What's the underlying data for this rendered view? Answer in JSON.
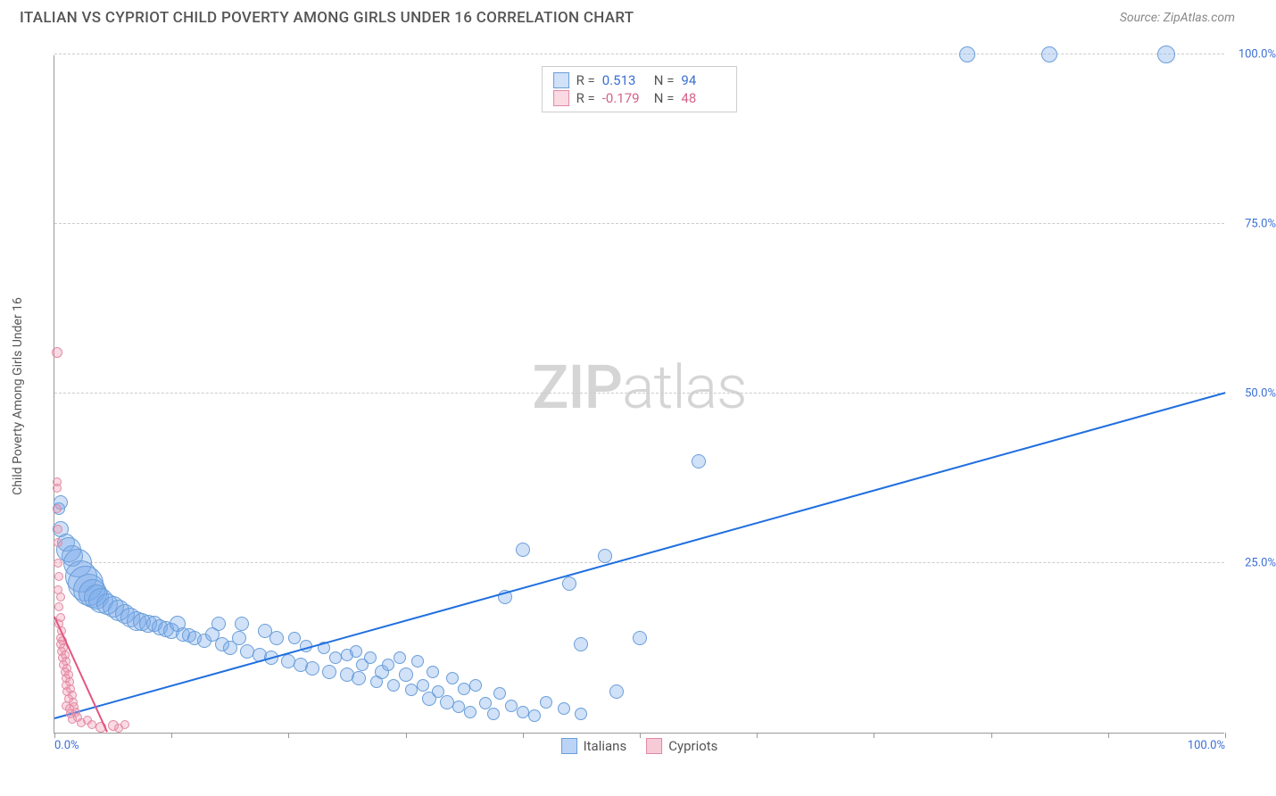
{
  "header": {
    "title": "ITALIAN VS CYPRIOT CHILD POVERTY AMONG GIRLS UNDER 16 CORRELATION CHART",
    "source": "Source: ZipAtlas.com"
  },
  "chart": {
    "type": "scatter",
    "y_axis_title": "Child Poverty Among Girls Under 16",
    "xlim": [
      0,
      100
    ],
    "ylim": [
      0,
      100
    ],
    "x_ticks": [
      0,
      10,
      20,
      30,
      40,
      50,
      60,
      70,
      80,
      90,
      100
    ],
    "y_gridlines": [
      0,
      25,
      50,
      75,
      100
    ],
    "x_labels": [
      {
        "v": 0,
        "t": "0.0%"
      },
      {
        "v": 100,
        "t": "100.0%"
      }
    ],
    "y_labels": [
      {
        "v": 25,
        "t": "25.0%"
      },
      {
        "v": 50,
        "t": "50.0%"
      },
      {
        "v": 75,
        "t": "75.0%"
      },
      {
        "v": 100,
        "t": "100.0%"
      }
    ],
    "watermark": {
      "bold": "ZIP",
      "light": "atlas"
    },
    "grid_color": "#cccccc",
    "axis_color": "#999999",
    "background_color": "#ffffff",
    "series": [
      {
        "name": "Italians",
        "fill": "rgba(120,170,235,0.35)",
        "stroke": "#6a9ed8",
        "trend_color": "#1f6fe0",
        "trend": {
          "x1": 0,
          "y1": 2,
          "x2": 100,
          "y2": 50
        },
        "R": "0.513",
        "N": "94",
        "stat_color": "#3b6fd4",
        "points": [
          {
            "x": 0.5,
            "y": 34,
            "r": 8
          },
          {
            "x": 0.4,
            "y": 33,
            "r": 7
          },
          {
            "x": 0.5,
            "y": 30,
            "r": 9
          },
          {
            "x": 1,
            "y": 28,
            "r": 10
          },
          {
            "x": 1.2,
            "y": 27,
            "r": 14
          },
          {
            "x": 1.5,
            "y": 26,
            "r": 12
          },
          {
            "x": 2,
            "y": 25,
            "r": 16
          },
          {
            "x": 2.3,
            "y": 23,
            "r": 18
          },
          {
            "x": 2.7,
            "y": 22,
            "r": 20
          },
          {
            "x": 3,
            "y": 21,
            "r": 18
          },
          {
            "x": 3.3,
            "y": 20.5,
            "r": 16
          },
          {
            "x": 3.6,
            "y": 20,
            "r": 14
          },
          {
            "x": 4,
            "y": 19.5,
            "r": 14
          },
          {
            "x": 4.5,
            "y": 19,
            "r": 12
          },
          {
            "x": 5,
            "y": 18.5,
            "r": 12
          },
          {
            "x": 5.5,
            "y": 18,
            "r": 12
          },
          {
            "x": 6,
            "y": 17.5,
            "r": 11
          },
          {
            "x": 6.5,
            "y": 17,
            "r": 11
          },
          {
            "x": 7,
            "y": 16.5,
            "r": 11
          },
          {
            "x": 7.5,
            "y": 16.3,
            "r": 10
          },
          {
            "x": 8,
            "y": 16,
            "r": 10
          },
          {
            "x": 8.5,
            "y": 16,
            "r": 9
          },
          {
            "x": 9,
            "y": 15.5,
            "r": 9
          },
          {
            "x": 9.5,
            "y": 15.3,
            "r": 9
          },
          {
            "x": 10,
            "y": 15,
            "r": 9
          },
          {
            "x": 10.5,
            "y": 16,
            "r": 9
          },
          {
            "x": 11,
            "y": 14.5,
            "r": 8
          },
          {
            "x": 11.5,
            "y": 14.3,
            "r": 8
          },
          {
            "x": 12,
            "y": 14,
            "r": 8
          },
          {
            "x": 12.8,
            "y": 13.5,
            "r": 8
          },
          {
            "x": 13.5,
            "y": 14.5,
            "r": 8
          },
          {
            "x": 14,
            "y": 16,
            "r": 8
          },
          {
            "x": 14.3,
            "y": 13,
            "r": 8
          },
          {
            "x": 15,
            "y": 12.5,
            "r": 8
          },
          {
            "x": 15.8,
            "y": 14,
            "r": 8
          },
          {
            "x": 16,
            "y": 16,
            "r": 8
          },
          {
            "x": 16.5,
            "y": 12,
            "r": 8
          },
          {
            "x": 17.5,
            "y": 11.5,
            "r": 8
          },
          {
            "x": 18,
            "y": 15,
            "r": 8
          },
          {
            "x": 18.5,
            "y": 11,
            "r": 8
          },
          {
            "x": 19,
            "y": 14,
            "r": 8
          },
          {
            "x": 20,
            "y": 10.5,
            "r": 8
          },
          {
            "x": 20.5,
            "y": 14,
            "r": 7
          },
          {
            "x": 21,
            "y": 10,
            "r": 8
          },
          {
            "x": 21.5,
            "y": 12.8,
            "r": 7
          },
          {
            "x": 22,
            "y": 9.5,
            "r": 8
          },
          {
            "x": 23,
            "y": 12.5,
            "r": 7
          },
          {
            "x": 23.5,
            "y": 9,
            "r": 8
          },
          {
            "x": 24,
            "y": 11,
            "r": 7
          },
          {
            "x": 25,
            "y": 8.5,
            "r": 8
          },
          {
            "x": 25,
            "y": 11.5,
            "r": 7
          },
          {
            "x": 25.8,
            "y": 12,
            "r": 7
          },
          {
            "x": 26,
            "y": 8,
            "r": 8
          },
          {
            "x": 26.3,
            "y": 10,
            "r": 7
          },
          {
            "x": 27,
            "y": 11,
            "r": 7
          },
          {
            "x": 27.5,
            "y": 7.5,
            "r": 7
          },
          {
            "x": 28,
            "y": 9,
            "r": 8
          },
          {
            "x": 28.5,
            "y": 10,
            "r": 7
          },
          {
            "x": 29,
            "y": 7,
            "r": 7
          },
          {
            "x": 29.5,
            "y": 11,
            "r": 7
          },
          {
            "x": 30,
            "y": 8.5,
            "r": 8
          },
          {
            "x": 30.5,
            "y": 6.3,
            "r": 7
          },
          {
            "x": 31,
            "y": 10.5,
            "r": 7
          },
          {
            "x": 31.5,
            "y": 7,
            "r": 7
          },
          {
            "x": 32,
            "y": 5,
            "r": 8
          },
          {
            "x": 32.3,
            "y": 9,
            "r": 7
          },
          {
            "x": 32.8,
            "y": 6,
            "r": 7
          },
          {
            "x": 33.5,
            "y": 4.5,
            "r": 8
          },
          {
            "x": 34,
            "y": 8,
            "r": 7
          },
          {
            "x": 34.5,
            "y": 3.8,
            "r": 7
          },
          {
            "x": 35,
            "y": 6.5,
            "r": 7
          },
          {
            "x": 35.5,
            "y": 3,
            "r": 7
          },
          {
            "x": 36,
            "y": 7,
            "r": 7
          },
          {
            "x": 36.8,
            "y": 4.3,
            "r": 7
          },
          {
            "x": 37.5,
            "y": 2.8,
            "r": 7
          },
          {
            "x": 38,
            "y": 5.8,
            "r": 7
          },
          {
            "x": 38.5,
            "y": 20,
            "r": 8
          },
          {
            "x": 39,
            "y": 4,
            "r": 7
          },
          {
            "x": 40,
            "y": 3,
            "r": 7
          },
          {
            "x": 40,
            "y": 27,
            "r": 8
          },
          {
            "x": 41,
            "y": 2.5,
            "r": 7
          },
          {
            "x": 42,
            "y": 4.5,
            "r": 7
          },
          {
            "x": 43.5,
            "y": 3.5,
            "r": 7
          },
          {
            "x": 44,
            "y": 22,
            "r": 8
          },
          {
            "x": 45,
            "y": 13,
            "r": 8
          },
          {
            "x": 45,
            "y": 2.8,
            "r": 7
          },
          {
            "x": 47,
            "y": 26,
            "r": 8
          },
          {
            "x": 48,
            "y": 6,
            "r": 8
          },
          {
            "x": 50,
            "y": 14,
            "r": 8
          },
          {
            "x": 55,
            "y": 40,
            "r": 8
          },
          {
            "x": 78,
            "y": 100,
            "r": 9
          },
          {
            "x": 85,
            "y": 100,
            "r": 9
          },
          {
            "x": 95,
            "y": 100,
            "r": 10
          }
        ]
      },
      {
        "name": "Cypriots",
        "fill": "rgba(240,150,175,0.35)",
        "stroke": "#e08aa5",
        "trend_color": "#e3557f",
        "trend": {
          "x1": 0,
          "y1": 17,
          "x2": 4.5,
          "y2": 0
        },
        "R": "-0.179",
        "N": "48",
        "stat_color": "#d6618a",
        "points": [
          {
            "x": 0.2,
            "y": 56,
            "r": 6
          },
          {
            "x": 0.2,
            "y": 37,
            "r": 5
          },
          {
            "x": 0.2,
            "y": 36,
            "r": 5
          },
          {
            "x": 0.2,
            "y": 33,
            "r": 5
          },
          {
            "x": 0.3,
            "y": 30,
            "r": 5
          },
          {
            "x": 0.3,
            "y": 28,
            "r": 5
          },
          {
            "x": 0.3,
            "y": 25,
            "r": 5
          },
          {
            "x": 0.4,
            "y": 23,
            "r": 5
          },
          {
            "x": 0.3,
            "y": 21,
            "r": 5
          },
          {
            "x": 0.5,
            "y": 20,
            "r": 5
          },
          {
            "x": 0.4,
            "y": 18.5,
            "r": 5
          },
          {
            "x": 0.5,
            "y": 17,
            "r": 5
          },
          {
            "x": 0.4,
            "y": 16,
            "r": 5
          },
          {
            "x": 0.6,
            "y": 15,
            "r": 5
          },
          {
            "x": 0.5,
            "y": 14,
            "r": 5
          },
          {
            "x": 0.7,
            "y": 13.5,
            "r": 5
          },
          {
            "x": 0.5,
            "y": 13,
            "r": 5
          },
          {
            "x": 0.8,
            "y": 12.5,
            "r": 5
          },
          {
            "x": 0.6,
            "y": 12,
            "r": 5
          },
          {
            "x": 0.9,
            "y": 11.5,
            "r": 5
          },
          {
            "x": 0.7,
            "y": 11,
            "r": 5
          },
          {
            "x": 1,
            "y": 10.5,
            "r": 5
          },
          {
            "x": 0.8,
            "y": 10,
            "r": 5
          },
          {
            "x": 1.1,
            "y": 9.5,
            "r": 5
          },
          {
            "x": 0.9,
            "y": 9,
            "r": 5
          },
          {
            "x": 1.2,
            "y": 8.5,
            "r": 5
          },
          {
            "x": 1,
            "y": 8,
            "r": 5
          },
          {
            "x": 1.3,
            "y": 7.5,
            "r": 5
          },
          {
            "x": 1,
            "y": 7,
            "r": 5
          },
          {
            "x": 1.4,
            "y": 6.5,
            "r": 5
          },
          {
            "x": 1.1,
            "y": 6,
            "r": 5
          },
          {
            "x": 1.5,
            "y": 5.5,
            "r": 5
          },
          {
            "x": 1.2,
            "y": 5,
            "r": 5
          },
          {
            "x": 1.6,
            "y": 4.5,
            "r": 5
          },
          {
            "x": 1,
            "y": 4,
            "r": 5
          },
          {
            "x": 1.7,
            "y": 3.8,
            "r": 5
          },
          {
            "x": 1.3,
            "y": 3.5,
            "r": 5
          },
          {
            "x": 1.8,
            "y": 3,
            "r": 5
          },
          {
            "x": 1.4,
            "y": 2.7,
            "r": 5
          },
          {
            "x": 2,
            "y": 2.3,
            "r": 5
          },
          {
            "x": 1.5,
            "y": 2,
            "r": 5
          },
          {
            "x": 2.3,
            "y": 1.5,
            "r": 5
          },
          {
            "x": 2.8,
            "y": 1.8,
            "r": 5
          },
          {
            "x": 3.2,
            "y": 1.2,
            "r": 5
          },
          {
            "x": 4,
            "y": 0.8,
            "r": 6
          },
          {
            "x": 5,
            "y": 1,
            "r": 6
          },
          {
            "x": 5.5,
            "y": 0.6,
            "r": 5
          },
          {
            "x": 6,
            "y": 1.2,
            "r": 5
          }
        ]
      }
    ],
    "legend_bottom": [
      {
        "label": "Italians",
        "fill": "rgba(120,170,235,0.5)",
        "stroke": "#6a9ed8"
      },
      {
        "label": "Cypriots",
        "fill": "rgba(240,150,175,0.5)",
        "stroke": "#e08aa5"
      }
    ]
  }
}
